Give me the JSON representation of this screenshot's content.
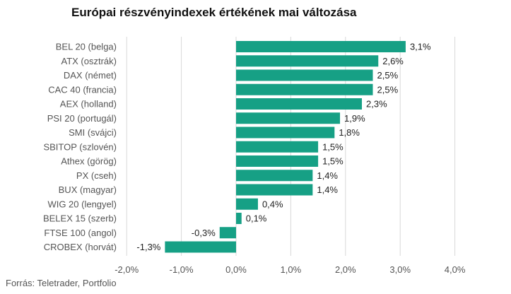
{
  "title": "Európai részvényindexek értékének mai változása",
  "source": "Forrás: Teletrader, Portfolio",
  "colors": {
    "bar": "#16a085",
    "grid": "#d9d9d9",
    "label": "#555555",
    "value": "#222222"
  },
  "chart_data": {
    "type": "bar",
    "orientation": "horizontal",
    "title": "Európai részvényindexek értékének mai változása",
    "categories": [
      "BEL 20 (belga)",
      "ATX (osztrák)",
      "DAX (német)",
      "CAC 40 (francia)",
      "AEX (holland)",
      "PSI 20 (portugál)",
      "SMI (svájci)",
      "SBITOP (szlovén)",
      "Athex (görög)",
      "PX (cseh)",
      "BUX (magyar)",
      "WIG 20 (lengyel)",
      "BELEX 15 (szerb)",
      "FTSE 100 (angol)",
      "CROBEX (horvát)"
    ],
    "values": [
      3.1,
      2.6,
      2.5,
      2.5,
      2.3,
      1.9,
      1.8,
      1.5,
      1.5,
      1.4,
      1.4,
      0.4,
      0.1,
      -0.3,
      -1.3
    ],
    "value_labels": [
      "3,1%",
      "2,6%",
      "2,5%",
      "2,5%",
      "2,3%",
      "1,9%",
      "1,8%",
      "1,5%",
      "1,5%",
      "1,4%",
      "1,4%",
      "0,4%",
      "0,1%",
      "-0,3%",
      "-1,3%"
    ],
    "xlim": [
      -2.0,
      4.0
    ],
    "xticks": [
      -2.0,
      -1.0,
      0.0,
      1.0,
      2.0,
      3.0,
      4.0
    ],
    "xtick_labels": [
      "-2,0%",
      "-1,0%",
      "0,0%",
      "1,0%",
      "2,0%",
      "3,0%",
      "4,0%"
    ],
    "xlabel": "",
    "ylabel": "",
    "grid": true,
    "legend": "none"
  }
}
